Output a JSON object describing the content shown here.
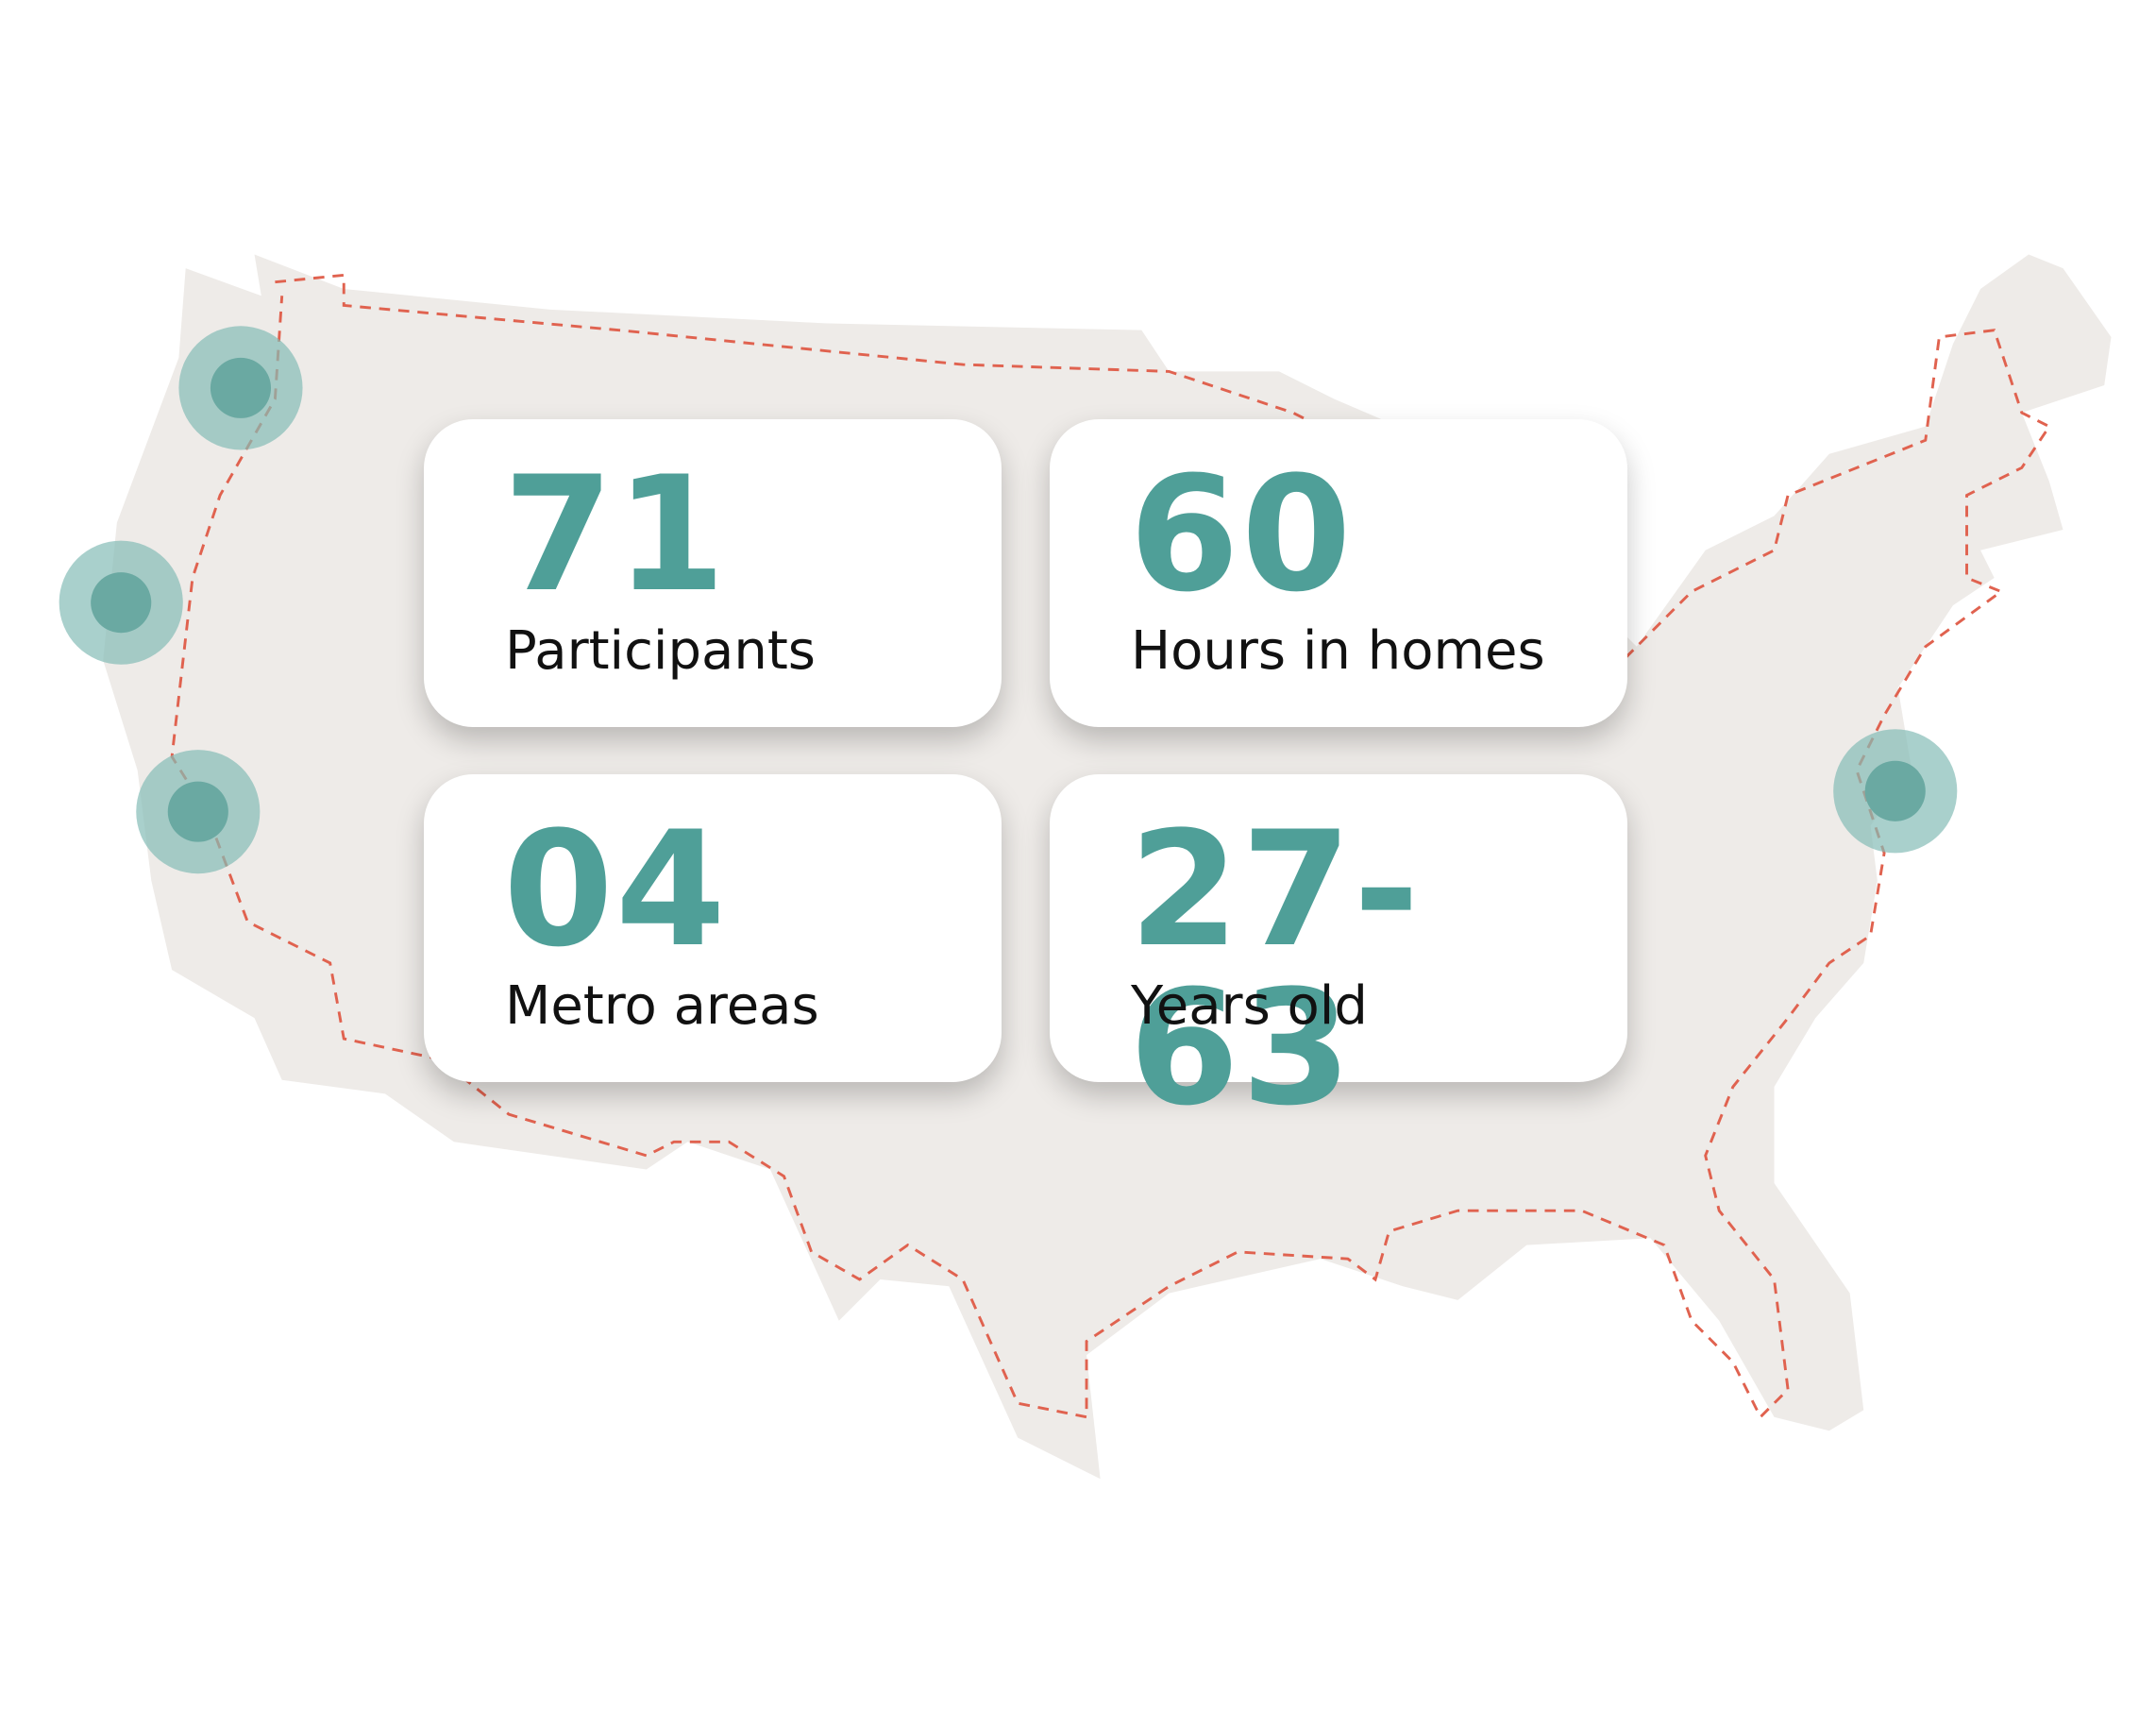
{
  "stats": [
    {
      "value": "71",
      "label": "Participants"
    },
    {
      "value": "60",
      "label": "Hours in homes"
    },
    {
      "value": "04",
      "label": "Metro areas"
    },
    {
      "value": "27-63",
      "label": "Years old"
    }
  ]
}
